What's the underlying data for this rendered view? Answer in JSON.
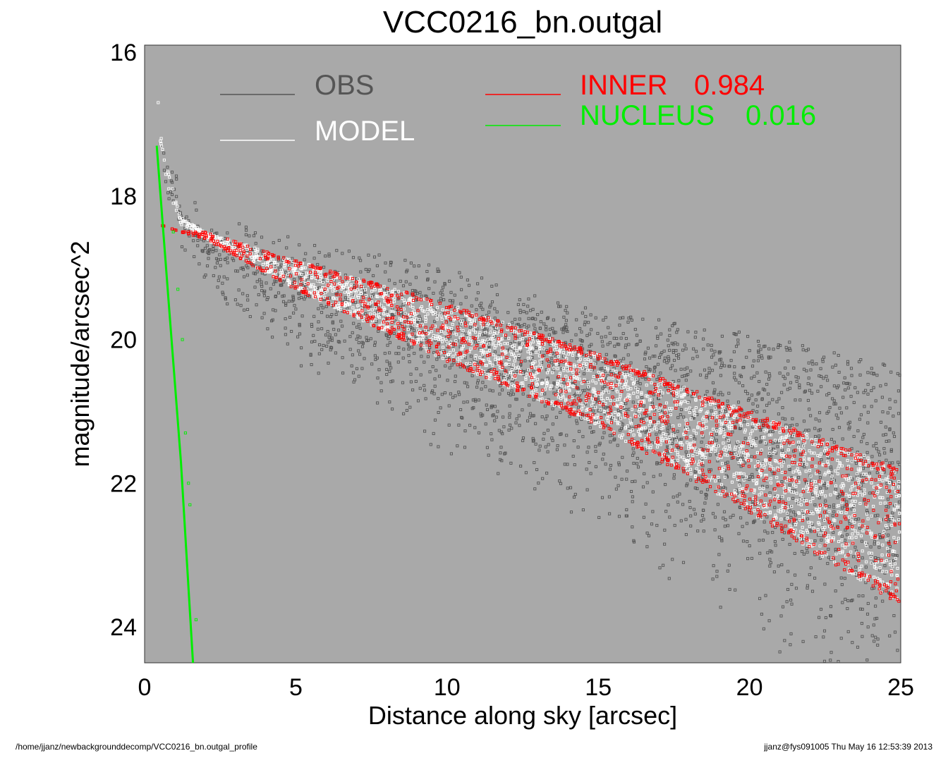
{
  "chart_data": {
    "type": "scatter",
    "title": "VCC0216_bn.outgal",
    "xlabel": "Distance along sky [arcsec]",
    "ylabel": "magnitude/arcsec^2",
    "xlim": [
      0,
      25
    ],
    "ylim": [
      24.5,
      15.9
    ],
    "y_inverted": true,
    "x_ticks": [
      "0",
      "5",
      "10",
      "15",
      "20",
      "25"
    ],
    "x_tick_values": [
      0,
      5,
      10,
      15,
      20,
      25
    ],
    "y_ticks": [
      "16",
      "18",
      "20",
      "22",
      "24"
    ],
    "y_tick_values": [
      16,
      18,
      20,
      22,
      24
    ],
    "grid": false,
    "background": "#a9a9a9",
    "legend": [
      {
        "name": "OBS",
        "color": "#555555"
      },
      {
        "name": "MODEL",
        "color": "#ffffff"
      },
      {
        "name": "INNER",
        "value": "0.984",
        "color": "#ff0000"
      },
      {
        "name": "NUCLEUS",
        "value": "0.016",
        "color": "#00ee00"
      }
    ],
    "series": [
      {
        "name": "OBS",
        "color": "#555555",
        "marker": "open-square",
        "band_inner_edge": {
          "x": [
            0.5,
            1.2,
            2,
            5,
            10,
            15,
            20,
            25
          ],
          "y": [
            17.2,
            18.3,
            18.8,
            19.5,
            20.3,
            21.0,
            21.9,
            23.0
          ]
        },
        "band_outer_edge": {
          "x": [
            0.5,
            1.2,
            2,
            5,
            10,
            15,
            20,
            25
          ],
          "y": [
            17.2,
            18.2,
            18.5,
            18.9,
            19.3,
            19.9,
            20.2,
            20.7
          ]
        },
        "scatter_spread": 1.2
      },
      {
        "name": "MODEL",
        "color": "#ffffff",
        "marker": "open-square",
        "band_inner_edge": {
          "x": [
            0.5,
            1.2,
            2,
            5,
            10,
            15,
            20,
            25
          ],
          "y": [
            17.2,
            18.4,
            18.6,
            19.3,
            20.3,
            21.2,
            22.4,
            23.7
          ]
        },
        "band_outer_edge": {
          "x": [
            0.5,
            1.2,
            2,
            5,
            10,
            15,
            20,
            25
          ],
          "y": [
            17.2,
            18.3,
            18.5,
            18.9,
            19.5,
            20.2,
            21.0,
            21.8
          ]
        }
      },
      {
        "name": "INNER",
        "color": "#ff0000",
        "marker": "open-square",
        "band_inner_edge": {
          "x": [
            0.5,
            1.2,
            2,
            5,
            10,
            15,
            20,
            25
          ],
          "y": [
            18.4,
            18.5,
            18.6,
            19.3,
            20.3,
            21.2,
            22.4,
            23.7
          ]
        },
        "band_outer_edge": {
          "x": [
            0.5,
            1.2,
            2,
            5,
            10,
            15,
            20,
            25
          ],
          "y": [
            18.4,
            18.5,
            18.5,
            18.9,
            19.5,
            20.2,
            21.0,
            21.8
          ]
        }
      },
      {
        "name": "NUCLEUS",
        "color": "#00ee00",
        "line": {
          "x": [
            0.4,
            0.8,
            1.2,
            1.6
          ],
          "y": [
            17.3,
            19.5,
            21.7,
            24.5
          ]
        },
        "points": {
          "x": [
            0.95,
            1.1,
            1.25,
            1.35,
            1.45,
            1.5,
            1.7
          ],
          "y": [
            18.5,
            19.3,
            20.0,
            21.3,
            22.0,
            22.3,
            23.9
          ]
        }
      }
    ]
  },
  "footer": {
    "left": "/home/jjanz/newbackgrounddecomp/VCC0216_bn.outgal_profile",
    "right": "jjanz@fys091005  Thu May 16 12:53:39 2013"
  }
}
